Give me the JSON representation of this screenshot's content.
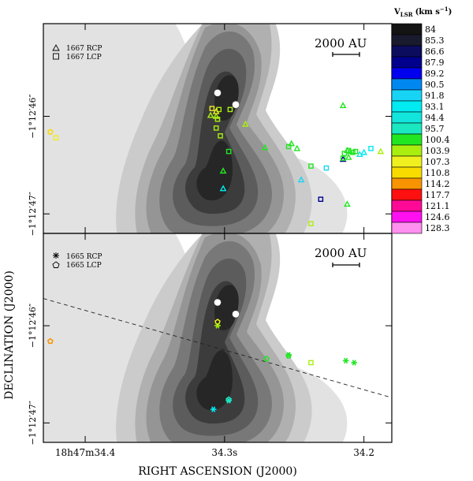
{
  "chart_data": {
    "type": "scatter",
    "description_kind": "OH maser spots over grey-scale continuum contours",
    "xlabel": "RIGHT ASCENSION (J2000)",
    "ylabel": "DECLINATION (J2000)",
    "x_ticks": [
      {
        "value": 34.4,
        "label": "18h47m34.4"
      },
      {
        "value": 34.3,
        "label": "34.3s"
      },
      {
        "value": 34.2,
        "label": "34.2"
      }
    ],
    "y_ticks": [
      {
        "value": 46,
        "label": "−1°12′46″"
      },
      {
        "value": 47,
        "label": "−1°12′47″"
      }
    ],
    "xlim": [
      34.43,
      34.18
    ],
    "ylim": [
      47.2,
      45.05
    ],
    "colorbar": {
      "title_prefix": "V",
      "title_sub": "LSR",
      "title_unit": "(km s",
      "title_exp": "−1",
      "title_close": ")",
      "levels": [
        84,
        85.3,
        86.6,
        87.9,
        89.2,
        90.5,
        91.8,
        93.1,
        94.4,
        95.7,
        100.4,
        103.9,
        107.3,
        110.8,
        114.2,
        117.7,
        121.1,
        124.6,
        128.3
      ],
      "level_labels": [
        "84",
        "85.3",
        "86.6",
        "87.9",
        "89.2",
        "90.5",
        "91.8",
        "93.1",
        "94.4",
        "95.7",
        "100.4",
        "103.9",
        "107.3",
        "110.8",
        "114.2",
        "117.7",
        "121.1",
        "124.6",
        "128.3"
      ],
      "colors": [
        "#141414",
        "#1a1a2e",
        "#0c0c5e",
        "#00008c",
        "#0000ee",
        "#0088f0",
        "#18d4f4",
        "#00eaf2",
        "#12e6dc",
        "#1ae8c0",
        "#22e622",
        "#aaee10",
        "#f0f020",
        "#f8dc00",
        "#f89400",
        "#ff1010",
        "#ff0a96",
        "#ff10f0",
        "#ff90f0"
      ]
    },
    "panels": [
      {
        "id": "top",
        "legend": [
          {
            "symbol": "triangle",
            "label": "1667 RCP"
          },
          {
            "symbol": "square",
            "label": "1667 LCP"
          }
        ],
        "scale_bar": "2000 AU",
        "peaks": [
          {
            "x": 34.305,
            "y": 45.76
          },
          {
            "x": 34.292,
            "y": 45.88
          }
        ],
        "points": [
          {
            "x": 34.285,
            "y": 46.08,
            "symbol": "triangle",
            "v": 103.9
          },
          {
            "x": 34.297,
            "y": 46.36,
            "symbol": "square",
            "v": 100.4
          },
          {
            "x": 34.304,
            "y": 45.93,
            "symbol": "square",
            "v": 103.9
          },
          {
            "x": 34.306,
            "y": 45.95,
            "symbol": "triangle",
            "v": 107.3
          },
          {
            "x": 34.306,
            "y": 46.0,
            "symbol": "triangle",
            "v": 103.9
          },
          {
            "x": 34.305,
            "y": 46.03,
            "symbol": "square",
            "v": 103.9
          },
          {
            "x": 34.306,
            "y": 46.12,
            "symbol": "square",
            "v": 103.9
          },
          {
            "x": 34.303,
            "y": 46.2,
            "symbol": "square",
            "v": 103.9
          },
          {
            "x": 34.296,
            "y": 45.93,
            "symbol": "square",
            "v": 103.9
          },
          {
            "x": 34.309,
            "y": 45.92,
            "symbol": "square",
            "v": 107.3
          },
          {
            "x": 34.31,
            "y": 45.99,
            "symbol": "triangle",
            "v": 103.9
          },
          {
            "x": 34.301,
            "y": 46.56,
            "symbol": "triangle",
            "v": 100.4
          },
          {
            "x": 34.301,
            "y": 46.74,
            "symbol": "triangle",
            "v": 93.1
          },
          {
            "x": 34.425,
            "y": 46.16,
            "symbol": "pentagon",
            "v": 110.8
          },
          {
            "x": 34.421,
            "y": 46.22,
            "symbol": "square",
            "v": 107.3
          },
          {
            "x": 34.271,
            "y": 46.32,
            "symbol": "triangle",
            "v": 100.4
          },
          {
            "x": 34.254,
            "y": 46.31,
            "symbol": "square",
            "v": 100.4
          },
          {
            "x": 34.252,
            "y": 46.28,
            "symbol": "triangle",
            "v": 100.4
          },
          {
            "x": 34.248,
            "y": 46.33,
            "symbol": "triangle",
            "v": 100.4
          },
          {
            "x": 34.238,
            "y": 46.51,
            "symbol": "square",
            "v": 100.4
          },
          {
            "x": 34.227,
            "y": 46.53,
            "symbol": "square",
            "v": 91.8
          },
          {
            "x": 34.245,
            "y": 46.65,
            "symbol": "triangle",
            "v": 91.8
          },
          {
            "x": 34.231,
            "y": 46.85,
            "symbol": "square",
            "v": 87.9
          },
          {
            "x": 34.238,
            "y": 47.1,
            "symbol": "square",
            "v": 103.9
          },
          {
            "x": 34.215,
            "y": 46.44,
            "symbol": "triangle",
            "v": 87.9
          },
          {
            "x": 34.212,
            "y": 46.9,
            "symbol": "triangle",
            "v": 100.4
          },
          {
            "x": 34.215,
            "y": 45.89,
            "symbol": "triangle",
            "v": 100.4
          },
          {
            "x": 34.211,
            "y": 46.35,
            "symbol": "square",
            "v": 100.4
          },
          {
            "x": 34.214,
            "y": 46.38,
            "symbol": "square",
            "v": 100.4
          },
          {
            "x": 34.211,
            "y": 46.42,
            "symbol": "triangle",
            "v": 100.4
          },
          {
            "x": 34.215,
            "y": 46.43,
            "symbol": "square",
            "v": 100.4
          },
          {
            "x": 34.21,
            "y": 46.36,
            "symbol": "triangle",
            "v": 100.4
          },
          {
            "x": 34.208,
            "y": 46.37,
            "symbol": "square",
            "v": 100.4
          },
          {
            "x": 34.206,
            "y": 46.36,
            "symbol": "square",
            "v": 100.4
          },
          {
            "x": 34.212,
            "y": 46.35,
            "symbol": "triangle",
            "v": 100.4
          },
          {
            "x": 34.203,
            "y": 46.39,
            "symbol": "triangle",
            "v": 94.4
          },
          {
            "x": 34.2,
            "y": 46.37,
            "symbol": "triangle",
            "v": 93.1
          },
          {
            "x": 34.195,
            "y": 46.33,
            "symbol": "square",
            "v": 93.1
          },
          {
            "x": 34.188,
            "y": 46.36,
            "symbol": "triangle",
            "v": 103.9
          }
        ]
      },
      {
        "id": "bottom",
        "legend": [
          {
            "symbol": "star",
            "label": "1665 RCP"
          },
          {
            "symbol": "pentagon",
            "label": "1665 LCP"
          }
        ],
        "scale_bar": "2000 AU",
        "peaks": [
          {
            "x": 34.305,
            "y": 45.76
          },
          {
            "x": 34.292,
            "y": 45.88
          }
        ],
        "points": [
          {
            "x": 34.305,
            "y": 45.96,
            "symbol": "pentagon",
            "v": 107.3
          },
          {
            "x": 34.305,
            "y": 46.0,
            "symbol": "star",
            "v": 103.9
          },
          {
            "x": 34.425,
            "y": 46.16,
            "symbol": "pentagon",
            "v": 114.2
          },
          {
            "x": 34.27,
            "y": 46.34,
            "symbol": "pentagon",
            "v": 100.4
          },
          {
            "x": 34.254,
            "y": 46.31,
            "symbol": "pentagon",
            "v": 100.4
          },
          {
            "x": 34.254,
            "y": 46.3,
            "symbol": "star",
            "v": 100.4
          },
          {
            "x": 34.238,
            "y": 46.38,
            "symbol": "square",
            "v": 103.9
          },
          {
            "x": 34.213,
            "y": 46.36,
            "symbol": "star",
            "v": 100.4
          },
          {
            "x": 34.207,
            "y": 46.38,
            "symbol": "star",
            "v": 100.4
          },
          {
            "x": 34.297,
            "y": 46.76,
            "symbol": "pentagon",
            "v": 95.7
          },
          {
            "x": 34.297,
            "y": 46.77,
            "symbol": "star",
            "v": 95.7
          },
          {
            "x": 34.308,
            "y": 46.86,
            "symbol": "star",
            "v": 93.1
          }
        ],
        "dashed_line": {
          "from": {
            "x": 34.43,
            "y": 45.72
          },
          "to": {
            "x": 34.18,
            "y": 46.74
          }
        }
      }
    ]
  }
}
